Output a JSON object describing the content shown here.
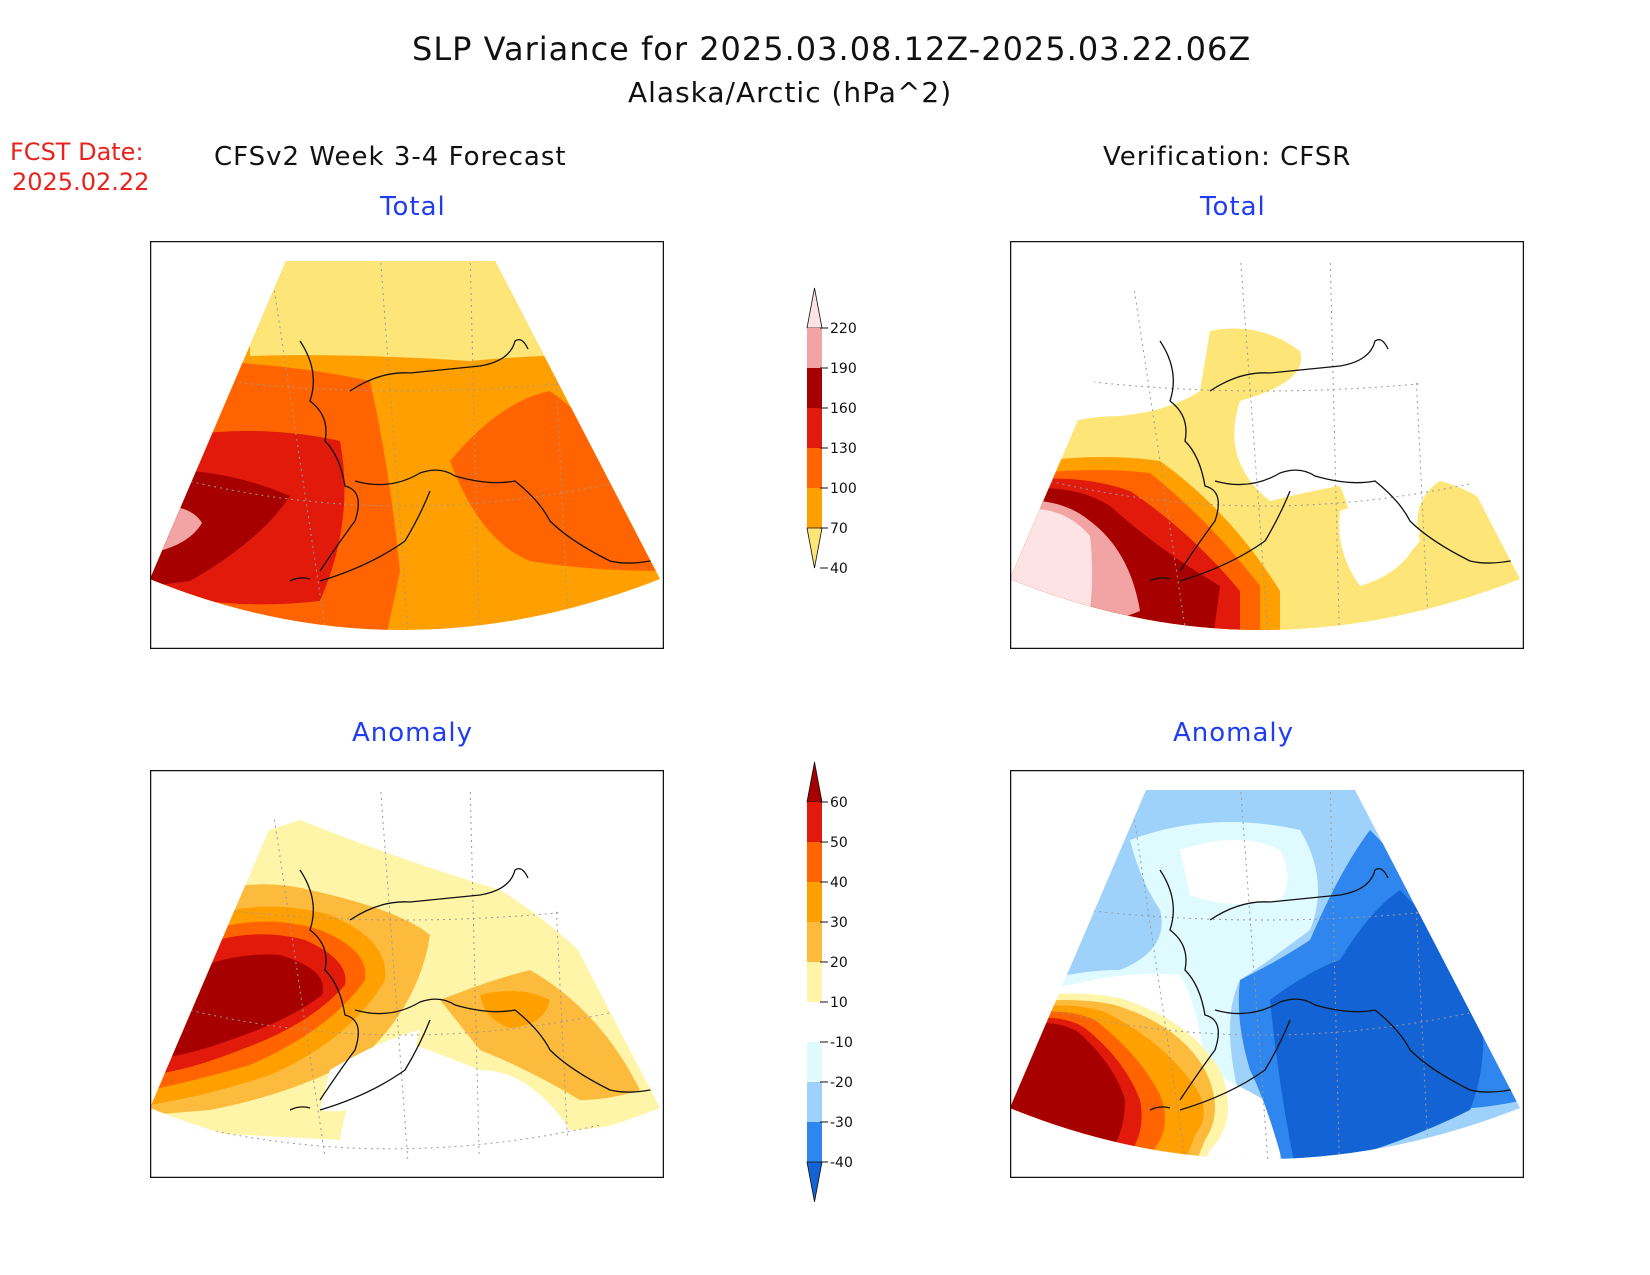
{
  "header": {
    "title": "SLP Variance for 2025.03.08.12Z-2025.03.22.06Z",
    "subtitle": "Alaska/Arctic (hPa^2)",
    "fcst_label": "FCST Date:",
    "fcst_date": "2025.02.22"
  },
  "columns": {
    "left": "CFSv2 Week 3-4 Forecast",
    "right": "Verification: CFSR"
  },
  "panels": {
    "fcst_total": "Total",
    "fcst_anomaly": "Anomaly",
    "verif_total": "Total",
    "verif_anomaly": "Anomaly"
  },
  "colorbars": {
    "total": {
      "ticks": [
        "220",
        "190",
        "160",
        "130",
        "100",
        "70",
        "40"
      ],
      "colors": [
        "#fde3e3",
        "#f2a4a5",
        "#a70000",
        "#e11a0b",
        "#ff6400",
        "#ffa000",
        "#fde577"
      ]
    },
    "anomaly": {
      "ticks": [
        "60",
        "50",
        "40",
        "30",
        "20",
        "10",
        "-10",
        "-20",
        "-30",
        "-40"
      ],
      "colors": [
        "#a70000",
        "#e11a0b",
        "#ff6400",
        "#ffa000",
        "#fdbb3e",
        "#fef5a8",
        "#ffffff",
        "#e0fbff",
        "#9fd2fb",
        "#2f86ee",
        "#1463d4"
      ]
    }
  }
}
